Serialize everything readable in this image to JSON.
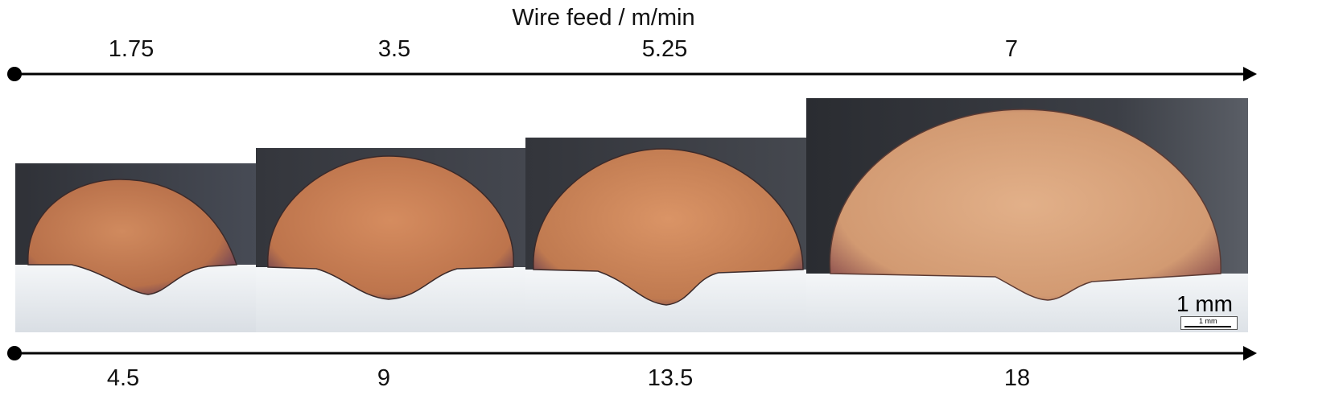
{
  "title": "Wire feed / m/min",
  "top_axis": {
    "ticks": [
      "1.75",
      "3.5",
      "5.25",
      "7"
    ]
  },
  "bottom_axis": {
    "ticks": [
      "4.5",
      "9",
      "13.5",
      "18"
    ]
  },
  "panels": [
    {
      "name": "weld-bead-1"
    },
    {
      "name": "weld-bead-2"
    },
    {
      "name": "weld-bead-3"
    },
    {
      "name": "weld-bead-4"
    }
  ],
  "scale_bar": {
    "label": "1 mm",
    "small_label": "1 mm"
  },
  "colors": {
    "bead": "#c27a55",
    "substrate": "#e4e9ee",
    "background": "#3a3d45"
  }
}
